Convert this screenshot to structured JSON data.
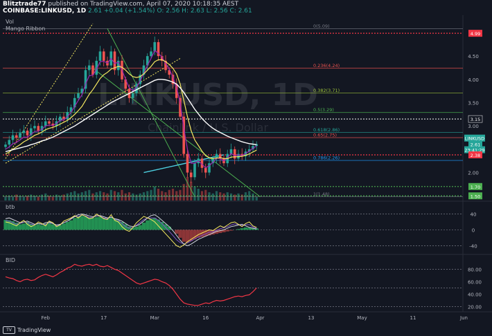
{
  "header": {
    "author": "Blitztrade77",
    "published": "published on TradingView.com, April 07, 2020 10:18:35 AEST",
    "symbol_line": "COINBASE:LINKUSD, 1D",
    "last": "2.61",
    "change": "+0.04 (+1.54%)",
    "ohlc": "O: 2.56  H: 2.63  L: 2.56  C: 2.61"
  },
  "watermark": {
    "symbol": "LINKUSD, 1D",
    "pair": "Chainlink / U.S. Dollar"
  },
  "indicators": {
    "vol": "Vol",
    "mango": "Mango Ribbon",
    "btb": "btb",
    "bid": "BID"
  },
  "fib_levels": [
    {
      "label": "0(5.09)",
      "price": 5.09,
      "color": "#787b86"
    },
    {
      "label": "0.236(4.24)",
      "price": 4.24,
      "color": "#ef5350"
    },
    {
      "label": "0.382(3.71)",
      "price": 3.71,
      "color": "#9fc539"
    },
    {
      "label": "0.5(3.29)",
      "price": 3.29,
      "color": "#4caf50"
    },
    {
      "label": "0.618(2.86)",
      "price": 2.86,
      "color": "#26a69a"
    },
    {
      "label": "0.65(2.75)",
      "price": 2.75,
      "color": "#ef5350"
    },
    {
      "label": "0.786(2.26)",
      "price": 2.26,
      "color": "#2196f3"
    },
    {
      "label": "1(1.48)",
      "price": 1.48,
      "color": "#787b86"
    }
  ],
  "price_axis": {
    "ticks": [
      "4.50",
      "4.00",
      "3.50",
      "3.00",
      "2.50",
      "2.00"
    ]
  },
  "price_badges": [
    {
      "text": "4.99",
      "bg": "#f23645"
    },
    {
      "text": "3.15",
      "bg": "#131722"
    },
    {
      "text": "LINKUSD",
      "bg": "#26a69a"
    },
    {
      "text": "2.61",
      "bg": "#26a69a"
    },
    {
      "text": "23:41:29",
      "bg": "#26a69a"
    },
    {
      "text": "2.38",
      "bg": "#f23645"
    },
    {
      "text": "1.70",
      "bg": "#4caf50"
    },
    {
      "text": "1.50",
      "bg": "#4caf50"
    }
  ],
  "btb_axis": {
    "ticks": [
      "40",
      "0",
      "-40"
    ]
  },
  "bid_axis": {
    "ticks": [
      "80.00",
      "60.00",
      "40.00",
      "20.00"
    ]
  },
  "time_axis": {
    "ticks": [
      "Feb",
      "17",
      "Mar",
      "16",
      "Apr",
      "13",
      "May",
      "11",
      "Jun"
    ]
  },
  "footer": {
    "logo_text": "TradingView"
  },
  "colors": {
    "bg": "#131722",
    "up": "#26a69a",
    "down": "#ef5350",
    "white_ma": "#ffffff",
    "yellow_ma": "#f5e960",
    "purple_ma": "#9c27b0"
  },
  "chart_data": {
    "type": "candlestick",
    "price": {
      "ylim": [
        1.4,
        5.2
      ],
      "levels_red": [
        4.99,
        2.38
      ],
      "levels_white": [
        3.15
      ],
      "levels_green": [
        1.7,
        1.5
      ],
      "close": [
        2.6,
        2.7,
        2.8,
        2.75,
        2.85,
        2.9,
        2.8,
        2.95,
        3.0,
        2.9,
        3.0,
        3.1,
        3.05,
        3.0,
        3.1,
        3.2,
        3.15,
        3.3,
        3.4,
        3.6,
        3.7,
        3.8,
        4.2,
        4.3,
        4.1,
        4.4,
        4.6,
        4.4,
        4.3,
        4.6,
        4.2,
        4.4,
        4.0,
        3.8,
        3.6,
        3.7,
        3.9,
        4.1,
        4.3,
        4.5,
        4.6,
        4.8,
        4.5,
        4.4,
        4.2,
        4.1,
        3.9,
        3.6,
        3.2,
        2.4,
        2.0,
        1.9,
        2.2,
        2.3,
        2.1,
        2.0,
        2.2,
        2.3,
        2.4,
        2.3,
        2.2,
        2.4,
        2.5,
        2.3,
        2.4,
        2.35,
        2.45,
        2.5,
        2.57,
        2.61
      ],
      "ma_white": [
        2.45,
        2.47,
        2.49,
        2.51,
        2.53,
        2.55,
        2.57,
        2.6,
        2.62,
        2.65,
        2.68,
        2.7,
        2.73,
        2.76,
        2.8,
        2.84,
        2.88,
        2.92,
        2.96,
        3.0,
        3.05,
        3.1,
        3.15,
        3.2,
        3.25,
        3.3,
        3.35,
        3.4,
        3.45,
        3.5,
        3.54,
        3.58,
        3.62,
        3.66,
        3.7,
        3.74,
        3.78,
        3.82,
        3.86,
        3.9,
        3.94,
        3.98,
        4.0,
        4.0,
        3.99,
        3.97,
        3.94,
        3.9,
        3.82,
        3.72,
        3.6,
        3.48,
        3.36,
        3.26,
        3.16,
        3.08,
        3.01,
        2.95,
        2.9,
        2.86,
        2.82,
        2.78,
        2.75,
        2.72,
        2.69,
        2.66,
        2.64,
        2.62,
        2.61,
        2.6
      ],
      "ma_yellow": [
        2.4,
        2.44,
        2.5,
        2.55,
        2.6,
        2.66,
        2.7,
        2.75,
        2.8,
        2.83,
        2.87,
        2.92,
        2.95,
        2.97,
        3.0,
        3.04,
        3.08,
        3.12,
        3.18,
        3.25,
        3.33,
        3.42,
        3.55,
        3.68,
        3.78,
        3.9,
        4.02,
        4.1,
        4.15,
        4.22,
        4.25,
        4.28,
        4.26,
        4.2,
        4.12,
        4.06,
        4.04,
        4.06,
        4.12,
        4.2,
        4.28,
        4.38,
        4.42,
        4.42,
        4.38,
        4.32,
        4.24,
        4.12,
        3.9,
        3.55,
        3.2,
        2.9,
        2.7,
        2.58,
        2.46,
        2.36,
        2.32,
        2.3,
        2.31,
        2.32,
        2.3,
        2.3,
        2.33,
        2.34,
        2.34,
        2.35,
        2.37,
        2.4,
        2.44,
        2.48
      ],
      "ma_purple": [
        2.5,
        2.55,
        2.62,
        2.65,
        2.7,
        2.76,
        2.76,
        2.82,
        2.88,
        2.89,
        2.93,
        3.0,
        3.02,
        3.01,
        3.05,
        3.12,
        3.13,
        3.2,
        3.29,
        3.42,
        3.55,
        3.67,
        3.9,
        4.08,
        4.09,
        4.22,
        4.38,
        4.39,
        4.35,
        4.45,
        4.34,
        4.37,
        4.2,
        4.0,
        3.82,
        3.76,
        3.83,
        3.97,
        4.13,
        4.3,
        4.45,
        4.62,
        4.56,
        4.48,
        4.34,
        4.22,
        4.05,
        3.82,
        3.5,
        2.95,
        2.5,
        2.2,
        2.2,
        2.25,
        2.18,
        2.1,
        2.15,
        2.22,
        2.31,
        2.3,
        2.25,
        2.32,
        2.41,
        2.36,
        2.38,
        2.37,
        2.41,
        2.46,
        2.52,
        2.57
      ],
      "fib_fan_upper": [
        [
          0,
          2.3
        ],
        [
          24,
          5.2
        ]
      ],
      "fib_fan_mid": [
        [
          0,
          2.2
        ],
        [
          48,
          4.45
        ]
      ],
      "trendline_green": [
        [
          28,
          5.09
        ],
        [
          52,
          1.48
        ]
      ],
      "trendline_green2": [
        [
          24,
          4.24
        ],
        [
          70,
          1.48
        ]
      ],
      "support_line": [
        [
          38,
          2.0
        ],
        [
          60,
          2.38
        ]
      ],
      "vol": [
        3,
        4,
        3,
        5,
        4,
        3,
        4,
        5,
        4,
        3,
        5,
        6,
        4,
        3,
        5,
        4,
        5,
        6,
        7,
        8,
        6,
        7,
        8,
        9,
        6,
        7,
        8,
        7,
        6,
        9,
        8,
        7,
        9,
        6,
        7,
        6,
        5,
        6,
        7,
        8,
        9,
        12,
        10,
        8,
        7,
        9,
        10,
        8,
        9,
        14,
        20,
        16,
        12,
        10,
        8,
        9,
        7,
        6,
        8,
        7,
        6,
        7,
        6,
        5,
        6,
        5,
        7,
        8,
        6,
        3
      ]
    },
    "btb": {
      "ylim": [
        -55,
        60
      ],
      "hist": [
        25,
        24,
        22,
        18,
        14,
        16,
        20,
        15,
        12,
        14,
        12,
        16,
        18,
        14,
        10,
        12,
        16,
        20,
        24,
        30,
        34,
        35,
        34,
        32,
        30,
        32,
        33,
        30,
        28,
        30,
        26,
        24,
        20,
        14,
        8,
        6,
        8,
        12,
        18,
        24,
        28,
        30,
        26,
        20,
        14,
        8,
        0,
        -10,
        -20,
        -30,
        -32,
        -28,
        -24,
        -20,
        -18,
        -16,
        -14,
        -12,
        -10,
        -8,
        -6,
        -4,
        -2,
        0,
        2,
        4,
        6,
        5,
        4,
        4
      ],
      "line_white": [
        28,
        30,
        26,
        22,
        18,
        20,
        22,
        18,
        14,
        16,
        14,
        18,
        20,
        16,
        12,
        14,
        18,
        22,
        28,
        34,
        38,
        40,
        38,
        35,
        33,
        35,
        36,
        33,
        30,
        32,
        28,
        26,
        22,
        16,
        10,
        8,
        10,
        15,
        22,
        30,
        36,
        38,
        32,
        24,
        16,
        8,
        -2,
        -14,
        -26,
        -36,
        -40,
        -36,
        -30,
        -24,
        -20,
        -16,
        -12,
        -8,
        -4,
        -2,
        0,
        4,
        8,
        10,
        12,
        14,
        10,
        6,
        4,
        2
      ],
      "line_yellow": [
        20,
        18,
        14,
        10,
        18,
        24,
        14,
        8,
        12,
        20,
        16,
        10,
        22,
        18,
        8,
        12,
        22,
        26,
        30,
        36,
        30,
        38,
        34,
        28,
        30,
        40,
        34,
        28,
        26,
        38,
        24,
        20,
        8,
        0,
        -4,
        6,
        18,
        26,
        34,
        30,
        26,
        20,
        10,
        0,
        -10,
        -20,
        -30,
        -40,
        -44,
        -38,
        -30,
        -24,
        -18,
        -12,
        -8,
        -4,
        0,
        -2,
        4,
        10,
        6,
        12,
        18,
        20,
        14,
        8,
        16,
        20,
        10,
        6
      ],
      "line_purple": [
        24,
        22,
        18,
        14,
        16,
        20,
        18,
        14,
        13,
        16,
        14,
        14,
        18,
        16,
        11,
        13,
        18,
        22,
        27,
        33,
        34,
        37,
        35,
        31,
        31,
        36,
        34,
        30,
        28,
        33,
        27,
        24,
        16,
        8,
        4,
        6,
        12,
        19,
        26,
        29,
        30,
        30,
        24,
        16,
        6,
        -4,
        -14,
        -25,
        -32,
        -35,
        -33,
        -28,
        -23,
        -18,
        -14,
        -10,
        -6,
        -5,
        -1,
        3,
        5,
        8,
        12,
        15,
        13,
        11,
        13,
        13,
        7,
        4
      ]
    },
    "bid": {
      "ylim": [
        15,
        95
      ],
      "levels": [
        80,
        50,
        20
      ],
      "line": [
        68,
        66,
        65,
        62,
        60,
        63,
        64,
        62,
        63,
        67,
        70,
        72,
        70,
        68,
        71,
        75,
        78,
        82,
        84,
        88,
        86,
        85,
        87,
        88,
        86,
        88,
        85,
        84,
        86,
        83,
        80,
        78,
        74,
        70,
        66,
        62,
        58,
        56,
        58,
        60,
        62,
        64,
        63,
        60,
        58,
        54,
        48,
        40,
        32,
        26,
        24,
        23,
        22,
        22,
        24,
        26,
        25,
        28,
        30,
        29,
        30,
        32,
        34,
        36,
        37,
        36,
        38,
        39,
        44,
        50
      ]
    }
  }
}
